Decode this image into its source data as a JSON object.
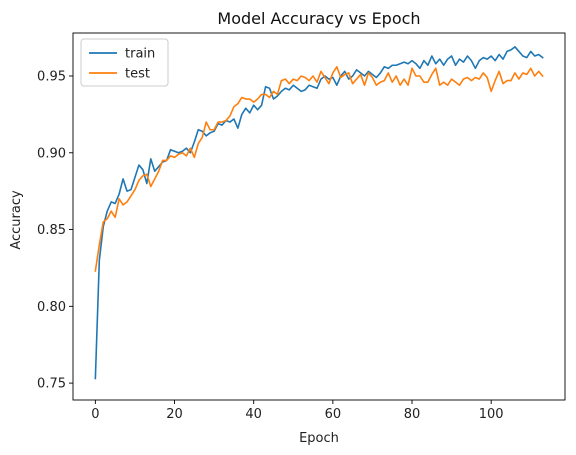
{
  "chart_data": {
    "type": "line",
    "title": "Model Accuracy vs Epoch",
    "xlabel": "Epoch",
    "ylabel": "Accuracy",
    "xlim": [
      -5.65,
      118.65
    ],
    "ylim": [
      0.739,
      0.978
    ],
    "xticks": [
      0,
      20,
      40,
      60,
      80,
      100
    ],
    "yticks": [
      0.75,
      0.8,
      0.85,
      0.9,
      0.95
    ],
    "ytick_labels": [
      "0.75",
      "0.80",
      "0.85",
      "0.90",
      "0.95"
    ],
    "grid": false,
    "legend_position": "top-left",
    "series": [
      {
        "name": "train",
        "color": "#1f77b4",
        "x": [
          0,
          1,
          2,
          3,
          4,
          5,
          6,
          7,
          8,
          9,
          10,
          11,
          12,
          13,
          14,
          15,
          16,
          17,
          18,
          19,
          20,
          21,
          22,
          23,
          24,
          25,
          26,
          27,
          28,
          29,
          30,
          31,
          32,
          33,
          34,
          35,
          36,
          37,
          38,
          39,
          40,
          41,
          42,
          43,
          44,
          45,
          46,
          47,
          48,
          49,
          50,
          51,
          52,
          53,
          54,
          55,
          56,
          57,
          58,
          59,
          60,
          61,
          62,
          63,
          64,
          65,
          66,
          67,
          68,
          69,
          70,
          71,
          72,
          73,
          74,
          75,
          76,
          77,
          78,
          79,
          80,
          81,
          82,
          83,
          84,
          85,
          86,
          87,
          88,
          89,
          90,
          91,
          92,
          93,
          94,
          95,
          96,
          97,
          98,
          99,
          100,
          101,
          102,
          103,
          104,
          105,
          106,
          107,
          108,
          109,
          110,
          111,
          112,
          113
        ],
        "y": [
          0.753,
          0.83,
          0.852,
          0.862,
          0.868,
          0.867,
          0.873,
          0.883,
          0.875,
          0.876,
          0.884,
          0.892,
          0.889,
          0.88,
          0.896,
          0.888,
          0.891,
          0.894,
          0.895,
          0.902,
          0.901,
          0.9,
          0.901,
          0.903,
          0.9,
          0.907,
          0.915,
          0.914,
          0.911,
          0.913,
          0.914,
          0.919,
          0.918,
          0.921,
          0.92,
          0.922,
          0.916,
          0.925,
          0.929,
          0.926,
          0.931,
          0.928,
          0.931,
          0.943,
          0.942,
          0.935,
          0.937,
          0.94,
          0.942,
          0.941,
          0.944,
          0.942,
          0.94,
          0.941,
          0.944,
          0.943,
          0.942,
          0.948,
          0.95,
          0.948,
          0.949,
          0.944,
          0.95,
          0.953,
          0.948,
          0.95,
          0.954,
          0.952,
          0.95,
          0.953,
          0.951,
          0.949,
          0.952,
          0.956,
          0.955,
          0.957,
          0.957,
          0.958,
          0.959,
          0.958,
          0.96,
          0.958,
          0.955,
          0.96,
          0.957,
          0.963,
          0.958,
          0.961,
          0.957,
          0.961,
          0.963,
          0.957,
          0.961,
          0.959,
          0.963,
          0.96,
          0.955,
          0.96,
          0.962,
          0.961,
          0.963,
          0.96,
          0.964,
          0.961,
          0.966,
          0.967,
          0.969,
          0.966,
          0.963,
          0.962,
          0.966,
          0.963,
          0.964,
          0.962
        ]
      },
      {
        "name": "test",
        "color": "#ff7f0e",
        "x": [
          0,
          1,
          2,
          3,
          4,
          5,
          6,
          7,
          8,
          9,
          10,
          11,
          12,
          13,
          14,
          15,
          16,
          17,
          18,
          19,
          20,
          21,
          22,
          23,
          24,
          25,
          26,
          27,
          28,
          29,
          30,
          31,
          32,
          33,
          34,
          35,
          36,
          37,
          38,
          39,
          40,
          41,
          42,
          43,
          44,
          45,
          46,
          47,
          48,
          49,
          50,
          51,
          52,
          53,
          54,
          55,
          56,
          57,
          58,
          59,
          60,
          61,
          62,
          63,
          64,
          65,
          66,
          67,
          68,
          69,
          70,
          71,
          72,
          73,
          74,
          75,
          76,
          77,
          78,
          79,
          80,
          81,
          82,
          83,
          84,
          85,
          86,
          87,
          88,
          89,
          90,
          91,
          92,
          93,
          94,
          95,
          96,
          97,
          98,
          99,
          100,
          101,
          102,
          103,
          104,
          105,
          106,
          107,
          108,
          109,
          110,
          111,
          112,
          113
        ],
        "y": [
          0.823,
          0.84,
          0.855,
          0.857,
          0.862,
          0.858,
          0.87,
          0.866,
          0.868,
          0.872,
          0.876,
          0.882,
          0.885,
          0.886,
          0.878,
          0.883,
          0.888,
          0.895,
          0.895,
          0.898,
          0.897,
          0.899,
          0.9,
          0.898,
          0.903,
          0.897,
          0.906,
          0.91,
          0.92,
          0.915,
          0.915,
          0.92,
          0.92,
          0.921,
          0.924,
          0.93,
          0.932,
          0.936,
          0.935,
          0.935,
          0.933,
          0.935,
          0.938,
          0.938,
          0.936,
          0.94,
          0.938,
          0.947,
          0.948,
          0.945,
          0.948,
          0.947,
          0.95,
          0.949,
          0.947,
          0.95,
          0.946,
          0.953,
          0.949,
          0.945,
          0.952,
          0.956,
          0.949,
          0.951,
          0.952,
          0.945,
          0.948,
          0.951,
          0.944,
          0.952,
          0.949,
          0.944,
          0.946,
          0.947,
          0.952,
          0.946,
          0.95,
          0.944,
          0.948,
          0.944,
          0.955,
          0.95,
          0.95,
          0.946,
          0.946,
          0.951,
          0.955,
          0.944,
          0.946,
          0.944,
          0.948,
          0.946,
          0.944,
          0.948,
          0.949,
          0.947,
          0.949,
          0.948,
          0.952,
          0.949,
          0.94,
          0.947,
          0.953,
          0.945,
          0.947,
          0.947,
          0.952,
          0.948,
          0.952,
          0.951,
          0.955,
          0.95,
          0.953,
          0.95
        ]
      }
    ]
  }
}
